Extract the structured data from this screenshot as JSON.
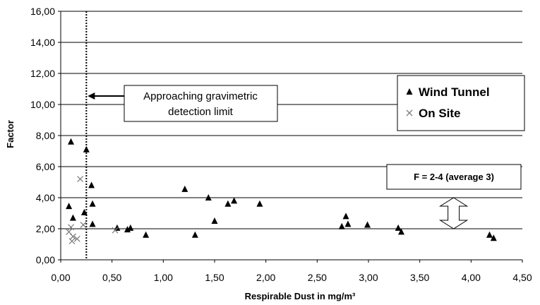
{
  "chart_data": {
    "type": "scatter",
    "title": "",
    "xlabel": "Respirable Dust in mg/m³",
    "ylabel": "Factor",
    "xlim": [
      0,
      4.5
    ],
    "ylim": [
      0,
      16
    ],
    "x_ticks": [
      "0,00",
      "0,50",
      "1,00",
      "1,50",
      "2,00",
      "2,50",
      "3,00",
      "3,50",
      "4,00",
      "4,50"
    ],
    "y_ticks": [
      "0,00",
      "2,00",
      "4,00",
      "6,00",
      "8,00",
      "10,00",
      "12,00",
      "14,00",
      "16,00"
    ],
    "grid": "horizontal",
    "legend_position": "right",
    "series": [
      {
        "name": "Wind Tunnel",
        "marker": "triangle",
        "color": "#000000",
        "points": [
          {
            "x": 0.08,
            "y": 3.45
          },
          {
            "x": 0.1,
            "y": 7.6
          },
          {
            "x": 0.12,
            "y": 2.7
          },
          {
            "x": 0.23,
            "y": 3.05
          },
          {
            "x": 0.25,
            "y": 7.1
          },
          {
            "x": 0.3,
            "y": 4.8
          },
          {
            "x": 0.31,
            "y": 3.6
          },
          {
            "x": 0.31,
            "y": 2.3
          },
          {
            "x": 0.55,
            "y": 2.05
          },
          {
            "x": 0.65,
            "y": 1.95
          },
          {
            "x": 0.68,
            "y": 2.05
          },
          {
            "x": 0.83,
            "y": 1.6
          },
          {
            "x": 1.21,
            "y": 4.55
          },
          {
            "x": 1.31,
            "y": 1.6
          },
          {
            "x": 1.44,
            "y": 4.0
          },
          {
            "x": 1.5,
            "y": 2.5
          },
          {
            "x": 1.63,
            "y": 3.6
          },
          {
            "x": 1.69,
            "y": 3.8
          },
          {
            "x": 1.94,
            "y": 3.6
          },
          {
            "x": 2.74,
            "y": 2.15
          },
          {
            "x": 2.78,
            "y": 2.8
          },
          {
            "x": 2.8,
            "y": 2.3
          },
          {
            "x": 2.99,
            "y": 2.25
          },
          {
            "x": 3.29,
            "y": 2.05
          },
          {
            "x": 3.32,
            "y": 1.8
          },
          {
            "x": 4.18,
            "y": 1.6
          },
          {
            "x": 4.22,
            "y": 1.4
          }
        ]
      },
      {
        "name": "On Site",
        "marker": "x",
        "color": "#808080",
        "points": [
          {
            "x": 0.08,
            "y": 1.8
          },
          {
            "x": 0.1,
            "y": 2.1
          },
          {
            "x": 0.11,
            "y": 1.2
          },
          {
            "x": 0.12,
            "y": 1.5
          },
          {
            "x": 0.16,
            "y": 1.35
          },
          {
            "x": 0.19,
            "y": 5.2
          },
          {
            "x": 0.22,
            "y": 2.25
          },
          {
            "x": 0.53,
            "y": 1.9
          }
        ]
      }
    ],
    "detection_limit_x": 0.25,
    "annotations": {
      "detection_label_line1": "Approaching gravimetric",
      "detection_label_line2": "detection limit",
      "factor_label": "F = 2-4 (average 3)",
      "factor_range": [
        2,
        4
      ],
      "factor_arrow_x": 3.83
    }
  }
}
